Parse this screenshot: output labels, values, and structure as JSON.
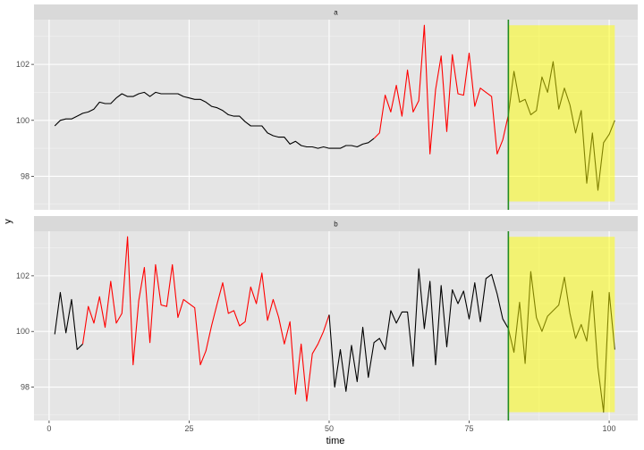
{
  "colors": {
    "panel_bg": "#e5e5e5",
    "grid_major": "#ffffff",
    "strip_bg": "#d9d9d9",
    "line_black": "#000000",
    "line_red": "#ff0000",
    "vline": "#228b22",
    "highlight": "#ffff00"
  },
  "chart_data": {
    "type": "line",
    "xlabel": "time",
    "ylabel": "y",
    "xlim": [
      -2.7,
      105.1
    ],
    "x_ticks": [
      0,
      25,
      50,
      75,
      100
    ],
    "x_tick_labels": [
      "0",
      "25",
      "50",
      "75",
      "100"
    ],
    "ylim": [
      96.8,
      103.6
    ],
    "y_ticks": [
      98,
      100,
      102
    ],
    "y_tick_labels": [
      "98",
      "100",
      "102"
    ],
    "vline_x": 82,
    "highlight_x": [
      82,
      101
    ],
    "highlight_y": [
      97.1,
      103.4
    ],
    "panels": [
      {
        "strip": "a",
        "segments": [
          {
            "color": "black",
            "x": [
              1,
              2,
              3,
              4,
              5,
              6,
              7,
              8,
              9,
              10,
              11,
              12,
              13,
              14,
              15,
              16,
              17,
              18,
              19,
              20,
              21,
              22,
              23,
              24,
              25,
              26,
              27,
              28,
              29,
              30,
              31,
              32,
              33,
              34,
              35,
              36,
              37,
              38,
              39,
              40,
              41,
              42,
              43,
              44,
              45,
              46,
              47,
              48,
              49,
              50,
              51,
              52,
              53,
              54,
              55,
              56,
              57,
              58
            ],
            "y": [
              99.8,
              100.0,
              100.05,
              100.05,
              100.15,
              100.25,
              100.3,
              100.4,
              100.65,
              100.6,
              100.6,
              100.8,
              100.95,
              100.85,
              100.85,
              100.95,
              101.0,
              100.85,
              101.0,
              100.95,
              100.95,
              100.95,
              100.95,
              100.85,
              100.8,
              100.75,
              100.75,
              100.65,
              100.5,
              100.45,
              100.35,
              100.2,
              100.15,
              100.15,
              99.95,
              99.8,
              99.8,
              99.8,
              99.55,
              99.45,
              99.4,
              99.4,
              99.15,
              99.25,
              99.1,
              99.05,
              99.05,
              99.0,
              99.05,
              99.0,
              99.0,
              99.0,
              99.1,
              99.1,
              99.05,
              99.15,
              99.2,
              99.35
            ]
          },
          {
            "color": "red",
            "x": [
              58,
              59,
              60,
              61,
              62,
              63,
              64,
              65,
              66,
              67,
              68,
              69,
              70,
              71,
              72,
              73,
              74,
              75,
              76,
              77,
              78,
              79,
              80,
              81,
              82
            ],
            "y": [
              99.35,
              99.55,
              100.9,
              100.3,
              101.25,
              100.15,
              101.8,
              100.3,
              100.7,
              103.4,
              98.8,
              101.1,
              102.3,
              99.6,
              102.35,
              100.95,
              100.9,
              102.4,
              100.5,
              101.15,
              101.0,
              100.85,
              98.8,
              99.3,
              100.2
            ]
          },
          {
            "color": "black",
            "x": [
              82,
              83,
              84,
              85,
              86,
              87,
              88,
              89,
              90,
              91,
              92,
              93,
              94,
              95,
              96,
              97,
              98,
              99,
              100,
              101
            ],
            "y": [
              100.2,
              101.75,
              100.65,
              100.75,
              100.2,
              100.35,
              101.55,
              101.0,
              102.1,
              100.4,
              101.15,
              100.55,
              99.55,
              100.35,
              97.75,
              99.55,
              97.5,
              99.2,
              99.5,
              100.0
            ]
          }
        ]
      },
      {
        "strip": "b",
        "segments": [
          {
            "color": "black",
            "x": [
              1,
              2,
              3,
              4,
              5,
              6
            ],
            "y": [
              99.9,
              101.4,
              99.95,
              101.15,
              99.35,
              99.55
            ]
          },
          {
            "color": "red",
            "x": [
              6,
              7,
              8,
              9,
              10,
              11,
              12,
              13,
              14,
              15,
              16,
              17,
              18,
              19,
              20,
              21,
              22,
              23,
              24,
              25,
              26,
              27,
              28,
              29,
              30,
              31,
              32,
              33,
              34,
              35,
              36,
              37,
              38,
              39,
              40,
              41,
              42,
              43,
              44,
              45,
              46,
              47,
              48,
              49,
              50
            ],
            "y": [
              99.55,
              100.9,
              100.3,
              101.25,
              100.15,
              101.8,
              100.3,
              100.65,
              103.4,
              98.8,
              101.1,
              102.3,
              99.6,
              102.4,
              100.95,
              100.9,
              102.4,
              100.5,
              101.15,
              101.0,
              100.85,
              98.8,
              99.3,
              100.2,
              101.0,
              101.75,
              100.65,
              100.75,
              100.2,
              100.35,
              101.6,
              101.0,
              102.1,
              100.4,
              101.15,
              100.5,
              99.55,
              100.35,
              97.75,
              99.55,
              97.5,
              99.2,
              99.55,
              100.0,
              100.6
            ]
          },
          {
            "color": "black",
            "x": [
              50,
              51,
              52,
              53,
              54,
              55,
              56,
              57,
              58,
              59,
              60,
              61,
              62,
              63,
              64,
              65,
              66,
              67,
              68,
              69,
              70,
              71,
              72,
              73,
              74,
              75,
              76,
              77,
              78,
              79,
              80,
              81,
              82
            ],
            "y": [
              100.6,
              98.0,
              99.35,
              97.85,
              99.5,
              98.2,
              100.15,
              98.35,
              99.6,
              99.75,
              99.35,
              100.75,
              100.3,
              100.7,
              100.7,
              98.75,
              102.25,
              100.1,
              101.8,
              98.8,
              101.65,
              99.45,
              101.5,
              101.0,
              101.45,
              100.45,
              101.75,
              100.35,
              101.9,
              102.05,
              101.35,
              100.45,
              100.1
            ]
          },
          {
            "color": "black",
            "x": [
              82,
              83,
              84,
              85,
              86,
              87,
              88,
              89,
              90,
              91,
              92,
              93,
              94,
              95,
              96,
              97,
              98,
              99,
              100,
              101
            ],
            "y": [
              100.1,
              99.25,
              101.05,
              98.85,
              102.15,
              100.5,
              100.0,
              100.55,
              100.75,
              100.95,
              101.95,
              100.65,
              99.75,
              100.25,
              99.65,
              101.45,
              98.7,
              97.1,
              101.4,
              99.35
            ]
          }
        ]
      }
    ]
  }
}
